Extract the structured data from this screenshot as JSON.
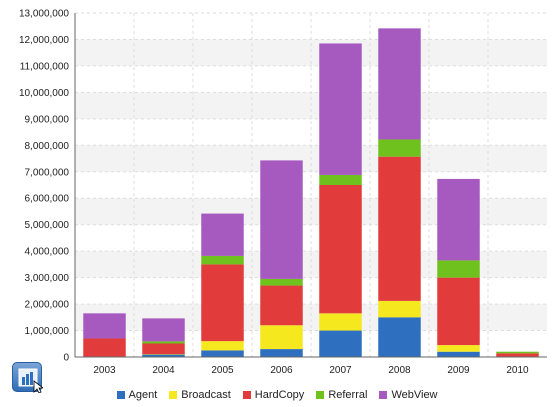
{
  "chart_data": {
    "type": "bar",
    "stacked": true,
    "categories": [
      "2003",
      "2004",
      "2005",
      "2006",
      "2007",
      "2008",
      "2009",
      "2010"
    ],
    "ylim": [
      0,
      13000000
    ],
    "yticks": [
      "0",
      "1,000,000",
      "2,000,000",
      "3,000,000",
      "4,000,000",
      "5,000,000",
      "6,000,000",
      "7,000,000",
      "8,000,000",
      "9,000,000",
      "10,000,000",
      "11,000,000",
      "12,000,000",
      "13,000,000"
    ],
    "grid": true,
    "legend_position": "bottom",
    "series": [
      {
        "name": "Agent",
        "color": "#2f6fc0",
        "values": [
          20000,
          100000,
          250000,
          300000,
          1000000,
          1500000,
          200000,
          10000
        ]
      },
      {
        "name": "Broadcast",
        "color": "#f5e81f",
        "values": [
          0,
          10000,
          350000,
          900000,
          650000,
          620000,
          250000,
          10000
        ]
      },
      {
        "name": "HardCopy",
        "color": "#e23b3b",
        "values": [
          680000,
          400000,
          2900000,
          1500000,
          4850000,
          5450000,
          2550000,
          120000
        ]
      },
      {
        "name": "Referral",
        "color": "#6fc11e",
        "values": [
          0,
          80000,
          320000,
          250000,
          380000,
          650000,
          650000,
          60000
        ]
      },
      {
        "name": "WebView",
        "color": "#a65ac0",
        "values": [
          950000,
          870000,
          1600000,
          4480000,
          4970000,
          4200000,
          3080000,
          0
        ]
      }
    ]
  },
  "toolbar": {
    "icon": "chart-tool-icon"
  }
}
